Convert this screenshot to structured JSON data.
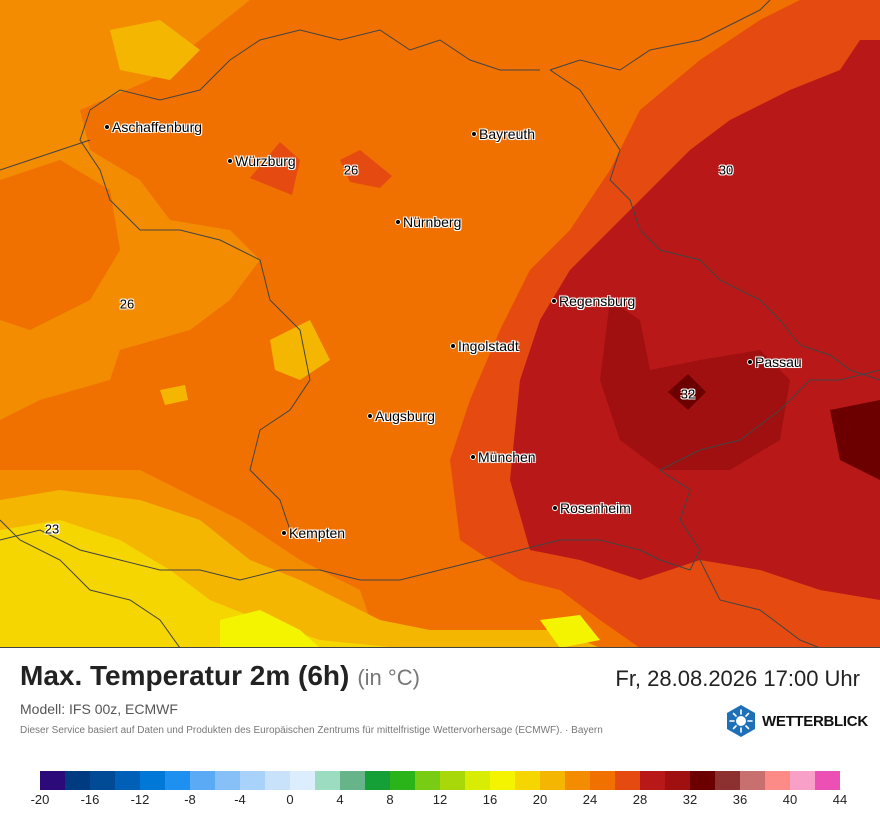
{
  "map": {
    "region": "Bayern",
    "cities": [
      {
        "name": "Aschaffenburg"
      },
      {
        "name": "Würzburg"
      },
      {
        "name": "Bayreuth"
      },
      {
        "name": "Nürnberg"
      },
      {
        "name": "Regensburg"
      },
      {
        "name": "Ingolstadt"
      },
      {
        "name": "Passau"
      },
      {
        "name": "Augsburg"
      },
      {
        "name": "München"
      },
      {
        "name": "Rosenheim"
      },
      {
        "name": "Kempten"
      }
    ],
    "temperature_labels": [
      "26",
      "30",
      "26",
      "32",
      "23"
    ]
  },
  "footer": {
    "title": "Max. Temperatur 2m (6h)",
    "unit": "(in °C)",
    "datetime": "Fr, 28.08.2026 17:00 Uhr",
    "model": "Modell: IFS 00z, ECMWF",
    "disclaimer": "Dieser Service basiert auf Daten und Produkten des Europäischen Zentrums für mittelfristige Wettervorhersage (ECMWF).  ·  Bayern",
    "logo_text": "WETTERBLICK",
    "logo_icon": "sun-snowflake-hexagon-icon"
  },
  "legend": {
    "ticks": [
      "-20",
      "-16",
      "-12",
      "-8",
      "-4",
      "0",
      "4",
      "8",
      "12",
      "16",
      "20",
      "24",
      "28",
      "32",
      "36",
      "40",
      "44"
    ],
    "colors": [
      "#2d0a7a",
      "#003a80",
      "#004a96",
      "#0060b8",
      "#0078d8",
      "#1e90f0",
      "#5aaaf5",
      "#86c0f7",
      "#a8d2f9",
      "#c8e2fb",
      "#dceefd",
      "#9cdcc0",
      "#68b48a",
      "#14a036",
      "#2ab41a",
      "#78cc14",
      "#a8d80a",
      "#d8ec04",
      "#f4f400",
      "#f6d600",
      "#f4b600",
      "#f38c00",
      "#f07000",
      "#e54a10",
      "#b81818",
      "#a01010",
      "#6c0000",
      "#8c3030",
      "#c87070",
      "#fc8a86",
      "#f8a0c8",
      "#ec50b4"
    ]
  },
  "colors": {
    "temp_22": "#f4b600",
    "temp_24": "#f38c00",
    "temp_26": "#f07000",
    "temp_28": "#e54a10",
    "temp_30": "#b81818",
    "temp_32": "#6c0000"
  }
}
